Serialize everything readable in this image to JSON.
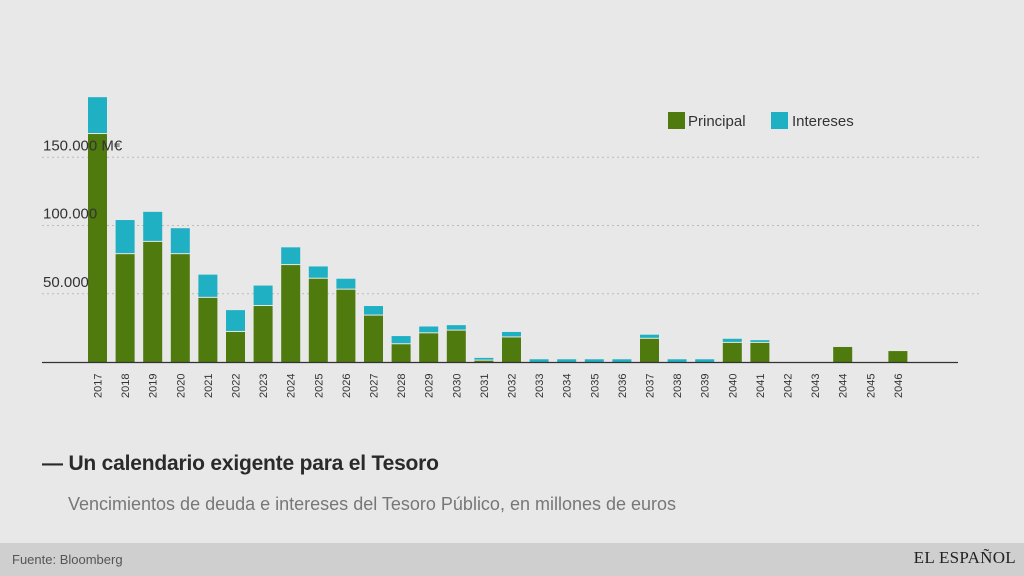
{
  "chart_data": {
    "type": "bar",
    "stacked": true,
    "title": "Un calendario exigente para el Tesoro",
    "title_prefix": "—",
    "subtitle": "Vencimientos de deuda e intereses del Tesoro Público, en millones de euros",
    "categories": [
      "2017",
      "2018",
      "2019",
      "2020",
      "2021",
      "2022",
      "2023",
      "2024",
      "2025",
      "2026",
      "2027",
      "2028",
      "2029",
      "2030",
      "2031",
      "2032",
      "2033",
      "2034",
      "2035",
      "2036",
      "2037",
      "2038",
      "2039",
      "2040",
      "2041",
      "2042",
      "2043",
      "2044",
      "2045",
      "2046"
    ],
    "series": [
      {
        "name": "Principal",
        "color": "#4e7a0e",
        "values": [
          167000,
          79000,
          88000,
          79000,
          47000,
          22000,
          41000,
          71000,
          61000,
          53000,
          34000,
          13000,
          21000,
          23000,
          1000,
          18000,
          0,
          0,
          0,
          0,
          17000,
          0,
          0,
          14000,
          14000,
          0,
          0,
          11000,
          0,
          8000
        ]
      },
      {
        "name": "Intereses",
        "color": "#1fb0c4",
        "values": [
          27000,
          25000,
          22000,
          19000,
          17000,
          16000,
          15000,
          13000,
          9000,
          8000,
          7000,
          6000,
          5000,
          4000,
          2000,
          4000,
          2000,
          2000,
          2000,
          2000,
          3000,
          2000,
          2000,
          3000,
          2000,
          0,
          0,
          0,
          0,
          0
        ]
      }
    ],
    "y_ticks": [
      {
        "value": 50000,
        "label": "50.000"
      },
      {
        "value": 100000,
        "label": "100.000"
      },
      {
        "value": 150000,
        "label": "150.000 M€"
      }
    ],
    "ylim": [
      0,
      200000
    ],
    "xlabel": "",
    "ylabel": "",
    "legend_position": "top-right",
    "grid": true,
    "grid_color": "#bbbbbb",
    "axis_color": "#333333"
  },
  "footer": {
    "source": "Fuente: Bloomberg",
    "brand": "EL ESPAÑOL"
  }
}
